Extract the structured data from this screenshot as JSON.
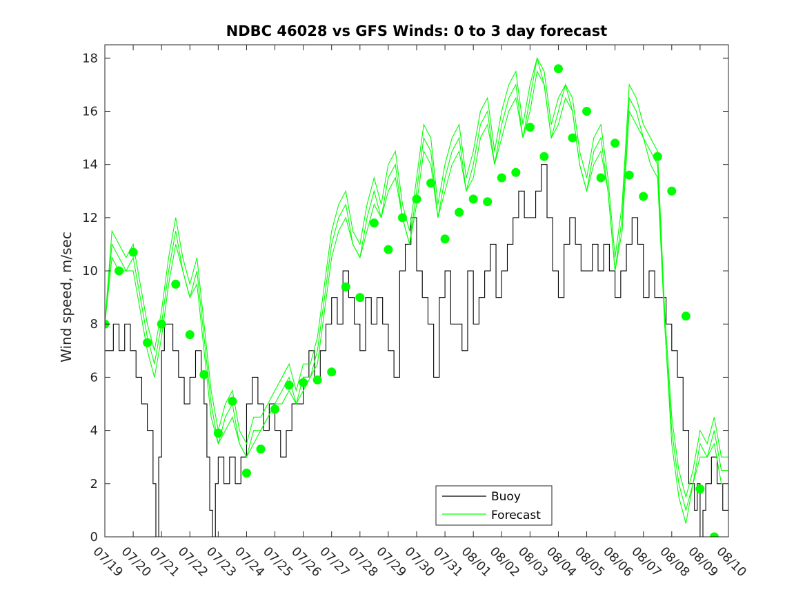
{
  "chart_data": {
    "type": "line",
    "title": "NDBC 46028 vs GFS Winds: 0 to 3 day forecast",
    "xlabel": "",
    "ylabel": "Wind speed, m/sec",
    "xlim": [
      0,
      22
    ],
    "ylim": [
      0,
      18.5
    ],
    "yticks": [
      0,
      2,
      4,
      6,
      8,
      10,
      12,
      14,
      16,
      18
    ],
    "xtick_labels": [
      "07/19",
      "07/20",
      "07/21",
      "07/22",
      "07/23",
      "07/24",
      "07/25",
      "07/26",
      "07/27",
      "07/28",
      "07/29",
      "07/30",
      "07/31",
      "08/01",
      "08/02",
      "08/03",
      "08/04",
      "08/05",
      "08/06",
      "08/07",
      "08/08",
      "08/09",
      "08/10"
    ],
    "grid": false,
    "legend": {
      "location": "bottom-center",
      "entries": [
        "Buoy",
        "Forecast"
      ]
    },
    "colors": {
      "buoy": "#000000",
      "forecast": "#00ff00",
      "axes": "#262626"
    },
    "series": [
      {
        "name": "Buoy",
        "x": [
          0,
          0.3,
          0.5,
          0.7,
          0.9,
          1.1,
          1.3,
          1.5,
          1.7,
          1.8,
          1.9,
          2.0,
          2.1,
          2.2,
          2.4,
          2.6,
          2.8,
          3.0,
          3.2,
          3.4,
          3.5,
          3.6,
          3.7,
          3.8,
          3.9,
          4.0,
          4.2,
          4.4,
          4.6,
          4.8,
          5.0,
          5.2,
          5.4,
          5.6,
          5.8,
          6.0,
          6.2,
          6.4,
          6.6,
          6.8,
          7.0,
          7.2,
          7.4,
          7.6,
          7.8,
          8.0,
          8.2,
          8.4,
          8.6,
          8.8,
          9.0,
          9.2,
          9.4,
          9.6,
          9.8,
          10.0,
          10.2,
          10.4,
          10.6,
          10.8,
          11.0,
          11.2,
          11.4,
          11.6,
          11.8,
          12.0,
          12.2,
          12.4,
          12.6,
          12.8,
          13.0,
          13.2,
          13.4,
          13.6,
          13.8,
          14.0,
          14.2,
          14.4,
          14.6,
          14.8,
          15.0,
          15.2,
          15.4,
          15.6,
          15.8,
          16.0,
          16.2,
          16.4,
          16.6,
          16.8,
          17.0,
          17.2,
          17.4,
          17.6,
          17.8,
          18.0,
          18.2,
          18.4,
          18.6,
          18.8,
          19.0,
          19.2,
          19.4,
          19.6,
          19.8,
          20.0,
          20.2,
          20.4,
          20.6,
          20.8,
          20.9,
          21.0,
          21.1,
          21.2,
          21.4,
          21.6,
          21.8,
          22.0
        ],
        "y": [
          7,
          8,
          7,
          8,
          7,
          6,
          5,
          4,
          2,
          0,
          3,
          7,
          8,
          8,
          7,
          6,
          5,
          6,
          7,
          6,
          5,
          3,
          1,
          0,
          2,
          3,
          2,
          3,
          2,
          3,
          5,
          6,
          5,
          4,
          5,
          4,
          3,
          4,
          5,
          5,
          6,
          7,
          6,
          7,
          8,
          9,
          8,
          10,
          9,
          8,
          7,
          9,
          8,
          9,
          8,
          7,
          6,
          10,
          11,
          12,
          10,
          9,
          8,
          6,
          9,
          10,
          8,
          8,
          7,
          10,
          8,
          9,
          10,
          11,
          9,
          10,
          11,
          12,
          13,
          12,
          12,
          13,
          14,
          12,
          10,
          9,
          11,
          12,
          11,
          10,
          10,
          11,
          10,
          11,
          10,
          9,
          10,
          11,
          12,
          11,
          9,
          10,
          9,
          9,
          8,
          7,
          6,
          4,
          2,
          1,
          2,
          0,
          1,
          2,
          3,
          2,
          1,
          2
        ]
      },
      {
        "name": "Forecast",
        "x": [
          0,
          0.25,
          0.5,
          0.75,
          1.0,
          1.25,
          1.5,
          1.75,
          2.0,
          2.25,
          2.5,
          2.75,
          3.0,
          3.25,
          3.5,
          3.75,
          4.0,
          4.25,
          4.5,
          4.75,
          5.0,
          5.25,
          5.5,
          5.75,
          6.0,
          6.25,
          6.5,
          6.75,
          7.0,
          7.25,
          7.5,
          7.75,
          8.0,
          8.25,
          8.5,
          8.75,
          9.0,
          9.25,
          9.5,
          9.75,
          10.0,
          10.25,
          10.5,
          10.75,
          11.0,
          11.25,
          11.5,
          11.75,
          12.0,
          12.25,
          12.5,
          12.75,
          13.0,
          13.25,
          13.5,
          13.75,
          14.0,
          14.25,
          14.5,
          14.75,
          15.0,
          15.25,
          15.5,
          15.75,
          16.0,
          16.25,
          16.5,
          16.75,
          17.0,
          17.25,
          17.5,
          17.75,
          18.0,
          18.25,
          18.5,
          18.75,
          19.0,
          19.25,
          19.5,
          19.75,
          20.0,
          20.25,
          20.5,
          20.75,
          21.0,
          21.25,
          21.5,
          21.75,
          22.0
        ],
        "y": [
          8,
          11,
          10.5,
          10,
          10.5,
          9,
          7.5,
          6.5,
          8,
          10,
          11.5,
          10,
          9,
          10,
          7.5,
          5,
          3.5,
          4.5,
          5,
          3.5,
          3,
          4,
          4,
          4.5,
          5,
          5.5,
          6,
          5,
          6,
          6,
          7,
          9,
          11,
          12,
          12.5,
          11,
          10.5,
          12,
          13,
          12,
          13.5,
          14,
          12,
          11,
          13,
          15,
          14.5,
          12,
          13.5,
          14.5,
          15,
          13,
          14,
          15.5,
          16,
          14,
          15.5,
          16.5,
          17,
          15,
          16.5,
          18,
          17,
          15,
          16,
          17,
          16,
          14,
          13,
          14.5,
          15,
          13,
          10,
          12,
          16.5,
          16,
          15,
          14.5,
          14,
          8,
          4,
          2,
          1,
          2,
          3.5,
          3,
          4,
          2.5,
          2.5
        ]
      },
      {
        "name": "",
        "x": [
          0,
          0.25,
          0.5,
          0.75,
          1.0,
          1.25,
          1.5,
          1.75,
          2.0,
          2.25,
          2.5,
          2.75,
          3.0,
          3.25,
          3.5,
          3.75,
          4.0,
          4.25,
          4.5,
          4.75,
          5.0,
          5.25,
          5.5,
          5.75,
          6.0,
          6.25,
          6.5,
          6.75,
          7.0,
          7.25,
          7.5,
          7.75,
          8.0,
          8.25,
          8.5,
          8.75,
          9.0,
          9.25,
          9.5,
          9.75,
          10.0,
          10.25,
          10.5,
          10.75,
          11.0,
          11.25,
          11.5,
          11.75,
          12.0,
          12.25,
          12.5,
          12.75,
          13.0,
          13.25,
          13.5,
          13.75,
          14.0,
          14.25,
          14.5,
          14.75,
          15.0,
          15.25,
          15.5,
          15.75,
          16.0,
          16.25,
          16.5,
          16.75,
          17.0,
          17.25,
          17.5,
          17.75,
          18.0,
          18.25,
          18.5,
          18.75,
          19.0,
          19.25,
          19.5,
          19.75,
          20.0,
          20.25,
          20.5,
          20.75,
          21.0,
          21.25,
          21.5,
          21.75,
          22.0
        ],
        "y": [
          8,
          10.5,
          10,
          10,
          10,
          8.5,
          7,
          6,
          7.5,
          9.5,
          11,
          10,
          9,
          9.5,
          7,
          4.5,
          3.5,
          4,
          4.5,
          3.5,
          3,
          3.5,
          4,
          4.5,
          5,
          5,
          5.5,
          5,
          5.5,
          6,
          6.5,
          8.5,
          10.5,
          11.5,
          12,
          11,
          10.5,
          11.5,
          12.5,
          12,
          13,
          13.5,
          12,
          11,
          12.5,
          14.5,
          14,
          12,
          13,
          14,
          14.5,
          13,
          13.5,
          15,
          15.5,
          14,
          15,
          16,
          16.5,
          15,
          16,
          17.5,
          17,
          15,
          15.5,
          16.5,
          16,
          14,
          13,
          14,
          14.5,
          13,
          10,
          11.5,
          16,
          15.5,
          15,
          14,
          13.5,
          8,
          3.5,
          1.5,
          0.5,
          2,
          3,
          3,
          3.5,
          2,
          2
        ]
      },
      {
        "name": "",
        "x": [
          0,
          0.25,
          0.5,
          0.75,
          1.0,
          1.25,
          1.5,
          1.75,
          2.0,
          2.25,
          2.5,
          2.75,
          3.0,
          3.25,
          3.5,
          3.75,
          4.0,
          4.25,
          4.5,
          4.75,
          5.0,
          5.25,
          5.5,
          5.75,
          6.0,
          6.25,
          6.5,
          6.75,
          7.0,
          7.25,
          7.5,
          7.75,
          8.0,
          8.25,
          8.5,
          8.75,
          9.0,
          9.25,
          9.5,
          9.75,
          10.0,
          10.25,
          10.5,
          10.75,
          11.0,
          11.25,
          11.5,
          11.75,
          12.0,
          12.25,
          12.5,
          12.75,
          13.0,
          13.25,
          13.5,
          13.75,
          14.0,
          14.25,
          14.5,
          14.75,
          15.0,
          15.25,
          15.5,
          15.75,
          16.0,
          16.25,
          16.5,
          16.75,
          17.0,
          17.25,
          17.5,
          17.75,
          18.0,
          18.25,
          18.5,
          18.75,
          19.0,
          19.25,
          19.5,
          19.75,
          20.0,
          20.25,
          20.5,
          20.75,
          21.0,
          21.25,
          21.5,
          21.75,
          22.0
        ],
        "y": [
          8,
          11.5,
          11,
          10.5,
          11,
          9.5,
          8,
          7,
          8.5,
          10.5,
          12,
          10.5,
          9.5,
          10.5,
          8,
          5.5,
          4,
          5,
          5.5,
          4,
          3.5,
          4.5,
          4.5,
          5,
          5.5,
          6,
          6.5,
          5.5,
          6.5,
          6.5,
          7.5,
          9.5,
          11.5,
          12.5,
          13,
          11.5,
          11,
          12.5,
          13.5,
          12.5,
          14,
          14.5,
          12.5,
          11.5,
          13.5,
          15.5,
          15,
          12.5,
          14,
          15,
          15.5,
          13.5,
          14.5,
          16,
          16.5,
          14.5,
          16,
          17,
          17.5,
          15.5,
          17,
          18,
          17.5,
          15.5,
          16.5,
          17,
          16.5,
          14.5,
          13.5,
          15,
          15.5,
          13.5,
          10.5,
          12.5,
          17,
          16.5,
          15.5,
          15,
          14.5,
          8.5,
          4.5,
          2.5,
          1.5,
          2.5,
          4,
          3.5,
          4.5,
          3,
          3
        ]
      },
      {
        "name": "",
        "x": [
          0.0,
          0.5,
          1.0,
          1.5,
          2.0,
          2.5,
          3.0,
          3.5,
          4.0,
          4.5,
          5.0,
          5.5,
          6.0,
          6.5,
          7.0,
          7.5,
          8.0,
          8.5,
          9.0,
          9.5,
          10.0,
          10.5,
          11.0,
          11.5,
          12.0,
          12.5,
          13.0,
          13.5,
          14.0,
          14.5,
          15.0,
          15.5,
          16.0,
          16.5,
          17.0,
          17.5,
          18.0,
          18.5,
          19.0,
          19.5,
          20.0,
          20.5,
          21.0,
          21.5
        ],
        "y": [
          8.0,
          10.0,
          10.7,
          7.3,
          8.0,
          9.5,
          7.6,
          6.1,
          3.9,
          5.1,
          2.4,
          3.3,
          4.8,
          5.7,
          5.8,
          5.9,
          6.2,
          9.4,
          9.0,
          11.8,
          10.8,
          12.0,
          12.7,
          13.3,
          11.2,
          12.2,
          12.7,
          12.6,
          13.5,
          13.7,
          15.4,
          14.3,
          17.6,
          15.0,
          16.0,
          13.5,
          14.8,
          13.6,
          12.8,
          14.3,
          13.0,
          8.3,
          1.8,
          0.0
        ]
      }
    ],
    "series_notes": "Forecast lines are an ensemble of several green runs; filled green dots mark forecast values at 12-hour intervals (4th series of points, rendered as markers)."
  }
}
